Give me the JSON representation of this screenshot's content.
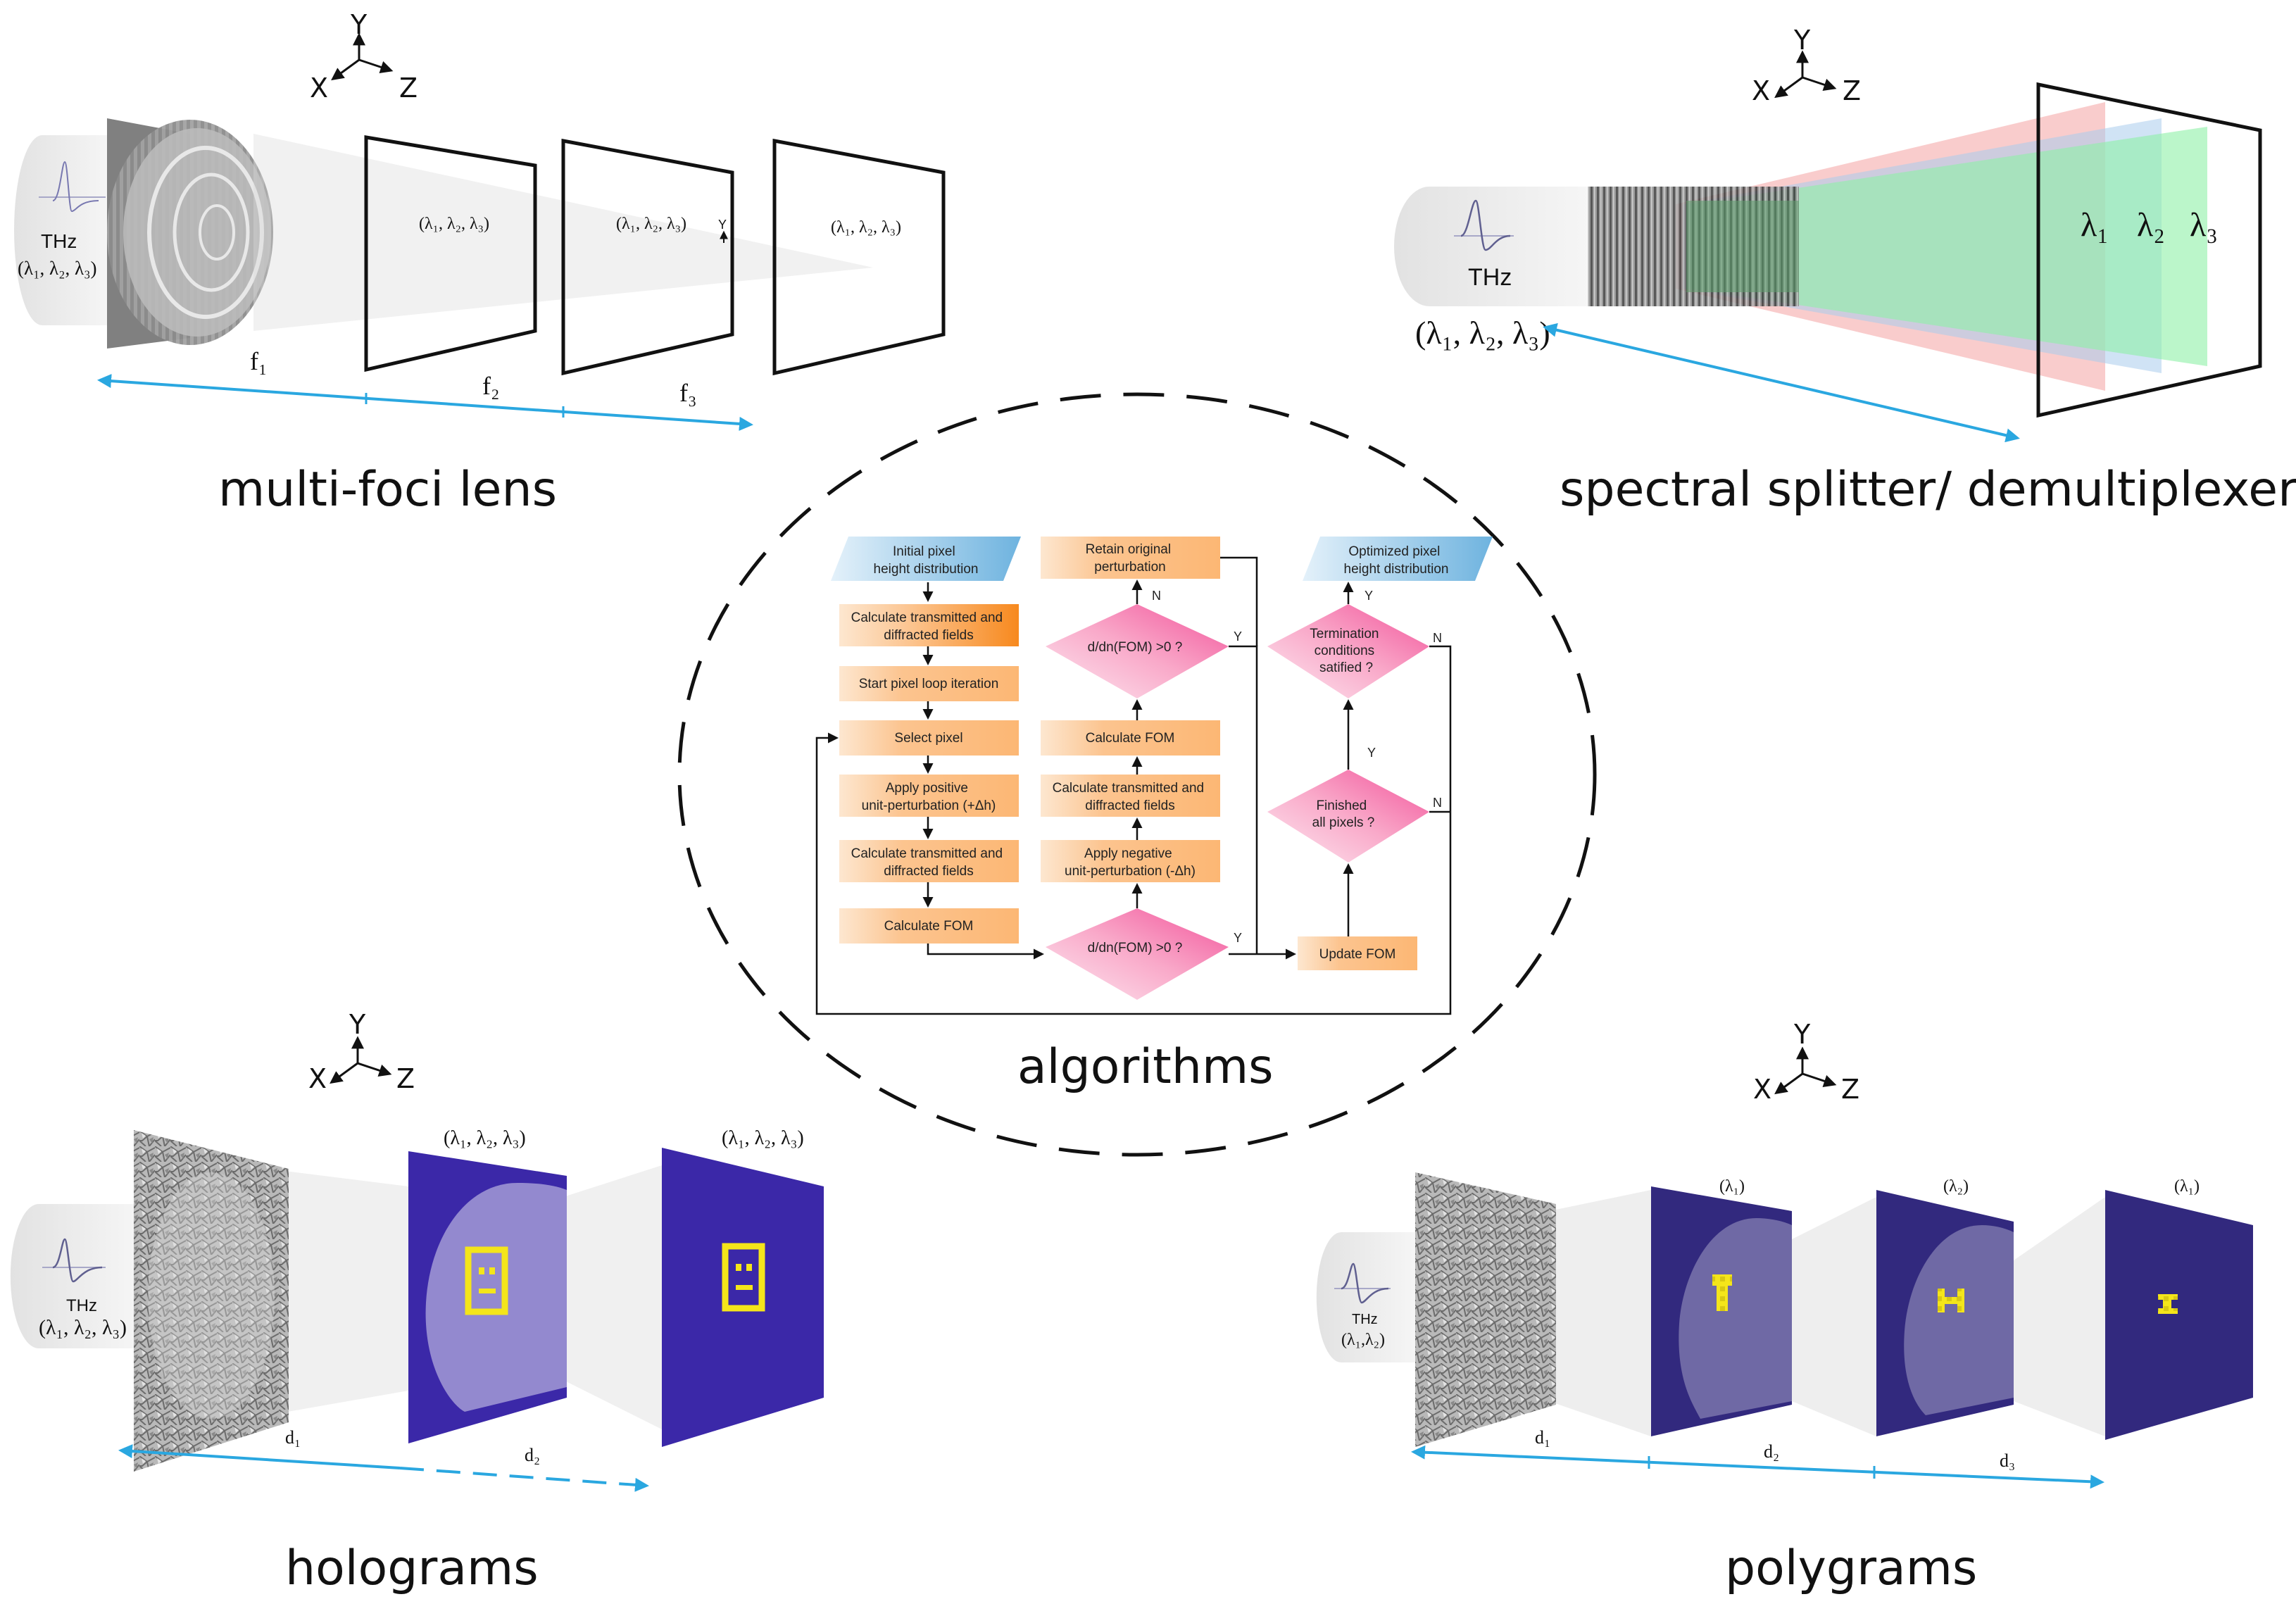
{
  "captions": {
    "top_left": "multi-foci lens",
    "top_right": "spectral splitter/ demultiplexer",
    "center": "algorithms",
    "bottom_left": "holograms",
    "bottom_right": "polygrams"
  },
  "axes": {
    "y": "Y",
    "x": "X",
    "z": "Z"
  },
  "source": {
    "thz": "THz",
    "three_lambda": "(λ₁, λ₂, λ₃)",
    "two_lambda": "(λ₁,λ₂)"
  },
  "lens": {
    "planes": [
      "(λ₁, λ₂, λ₃)",
      "(λ₁, λ₂, λ₃)",
      "(λ₁, λ₂, λ₃)"
    ],
    "y_marker": "Y",
    "distances": [
      "f₁",
      "f₂",
      "f₃"
    ]
  },
  "splitter": {
    "lambda_labels": [
      "λ₁",
      "λ₂",
      "λ₃"
    ]
  },
  "holograms": {
    "planes": [
      "(λ₁, λ₂, λ₃)",
      "(λ₁, λ₂, λ₃)"
    ],
    "distances": [
      "d₁",
      "d₂"
    ]
  },
  "polygrams": {
    "planes": [
      "(λ₁)",
      "(λ₂)",
      "(λ₁)"
    ],
    "distances": [
      "d₁",
      "d₂",
      "d₃"
    ]
  },
  "flowchart": {
    "col1": {
      "initial": [
        "Initial pixel",
        "height distribution"
      ],
      "calc1": [
        "Calculate transmitted and",
        "diffracted fields"
      ],
      "start_loop": [
        "Start pixel loop iteration"
      ],
      "select": [
        "Select pixel"
      ],
      "apply_pos": [
        "Apply positive",
        "unit-perturbation (+Δh)"
      ],
      "calc2": [
        "Calculate transmitted and",
        "diffracted fields"
      ],
      "calc_fom": [
        "Calculate FOM"
      ]
    },
    "col2": {
      "retain": [
        "Retain original",
        "perturbation"
      ],
      "decision_top": [
        "d/dn(FOM) >0 ?"
      ],
      "calc_fom": [
        "Calculate FOM"
      ],
      "calc_fields": [
        "Calculate transmitted and",
        "diffracted fields"
      ],
      "apply_neg": [
        "Apply negative",
        "unit-perturbation (-Δh)"
      ],
      "decision_bottom": [
        "d/dn(FOM) >0 ?"
      ]
    },
    "col3": {
      "optimized": [
        "Optimized pixel",
        "height distribution"
      ],
      "termination": [
        "Termination",
        "conditions",
        "satified ?"
      ],
      "finished": [
        "Finished",
        "all pixels ?"
      ],
      "update": [
        "Update FOM"
      ]
    },
    "yes": "Y",
    "no": "N"
  },
  "colors": {
    "arrow_blue": "#2aa7e0",
    "screen_blue": "#3b28a8",
    "screen_blue_dark": "#32297e",
    "target_yellow": "#f4e51a",
    "fc_orange": "#fcc48f",
    "fc_pink": "#f2529a",
    "fc_blue": "#6eb3df",
    "beam_red": "#f4a2a2",
    "beam_green": "#8ef0a6",
    "beam_blue": "#a9ccec"
  }
}
